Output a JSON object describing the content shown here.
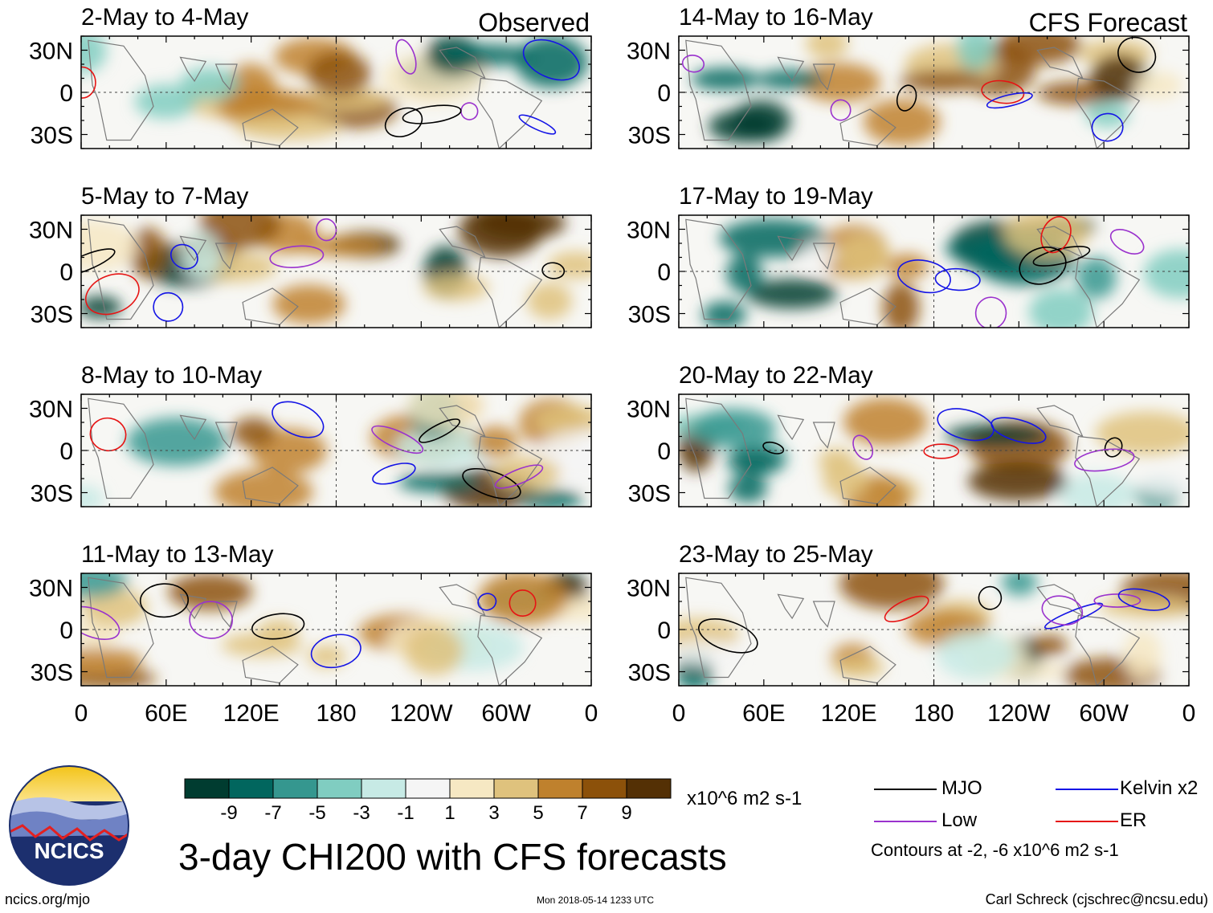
{
  "chart_data": {
    "type": "heatmap",
    "title": "3-day CHI200 with CFS forecasts",
    "variable": "CHI200",
    "units": "x10^6 m2 s-1",
    "columns": [
      {
        "label": "Observed",
        "panels": [
          {
            "title": "2-May to 4-May"
          },
          {
            "title": "5-May to 7-May"
          },
          {
            "title": "8-May to 10-May"
          },
          {
            "title": "11-May to 13-May"
          }
        ]
      },
      {
        "label": "CFS Forecast",
        "panels": [
          {
            "title": "14-May to 16-May"
          },
          {
            "title": "17-May to 19-May"
          },
          {
            "title": "20-May to 22-May"
          },
          {
            "title": "23-May to 25-May"
          }
        ]
      }
    ],
    "lat_labels": [
      "30N",
      "0",
      "30S"
    ],
    "lat_values": [
      30,
      0,
      -30
    ],
    "lon_labels": [
      "0",
      "60E",
      "120E",
      "180",
      "120W",
      "60W",
      "0"
    ],
    "lon_values": [
      0,
      60,
      120,
      180,
      240,
      300,
      360
    ],
    "ylim": [
      -40,
      40
    ],
    "xlim": [
      0,
      360
    ],
    "colorbar": {
      "tick_labels": [
        "-9",
        "-7",
        "-5",
        "-3",
        "-1",
        "1",
        "3",
        "5",
        "7",
        "9"
      ],
      "colors": [
        "#003c30",
        "#01665e",
        "#35978f",
        "#80cdc1",
        "#c7eae5",
        "#f5f5f5",
        "#f6e8c3",
        "#dfc27d",
        "#bf812d",
        "#8c510a",
        "#543005"
      ]
    },
    "legend": [
      {
        "label": "MJO",
        "color": "#000000"
      },
      {
        "label": "Kelvin x2",
        "color": "#1414e6"
      },
      {
        "label": "Low",
        "color": "#9a32cd"
      },
      {
        "label": "ER",
        "color": "#e61414"
      }
    ],
    "contour_note": "Contours at -2, -6 x10^6 m2 s-1"
  },
  "footer": {
    "left": "ncics.org/mjo",
    "middle": "Mon 2018-05-14 1233 UTC",
    "right": "Carl Schreck (cjschrec@ncsu.edu)"
  },
  "logo": {
    "text": "NCICS"
  }
}
